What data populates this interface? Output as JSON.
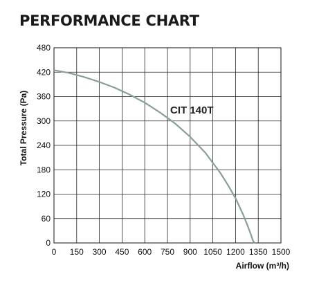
{
  "chart_data": {
    "type": "line",
    "title": "PERFORMANCE CHART",
    "xlabel": "Airflow (m³/h)",
    "ylabel": "Total Pressure (Pa)",
    "xlim": [
      0,
      1500
    ],
    "ylim": [
      0,
      480
    ],
    "xticks": [
      0,
      150,
      300,
      450,
      600,
      750,
      900,
      1050,
      1200,
      1350,
      1500
    ],
    "yticks": [
      0,
      60,
      120,
      180,
      240,
      300,
      360,
      420,
      480
    ],
    "grid": true,
    "series": [
      {
        "name": "CIT 140T",
        "color": "#8a9e98",
        "x": [
          0,
          100,
          200,
          300,
          400,
          500,
          600,
          700,
          800,
          900,
          1000,
          1100,
          1150,
          1200,
          1250,
          1280,
          1300,
          1315,
          1325
        ],
        "y": [
          425,
          418,
          408,
          396,
          382,
          365,
          345,
          321,
          294,
          261,
          222,
          172,
          142,
          110,
          70,
          42,
          22,
          6,
          0
        ]
      }
    ]
  }
}
